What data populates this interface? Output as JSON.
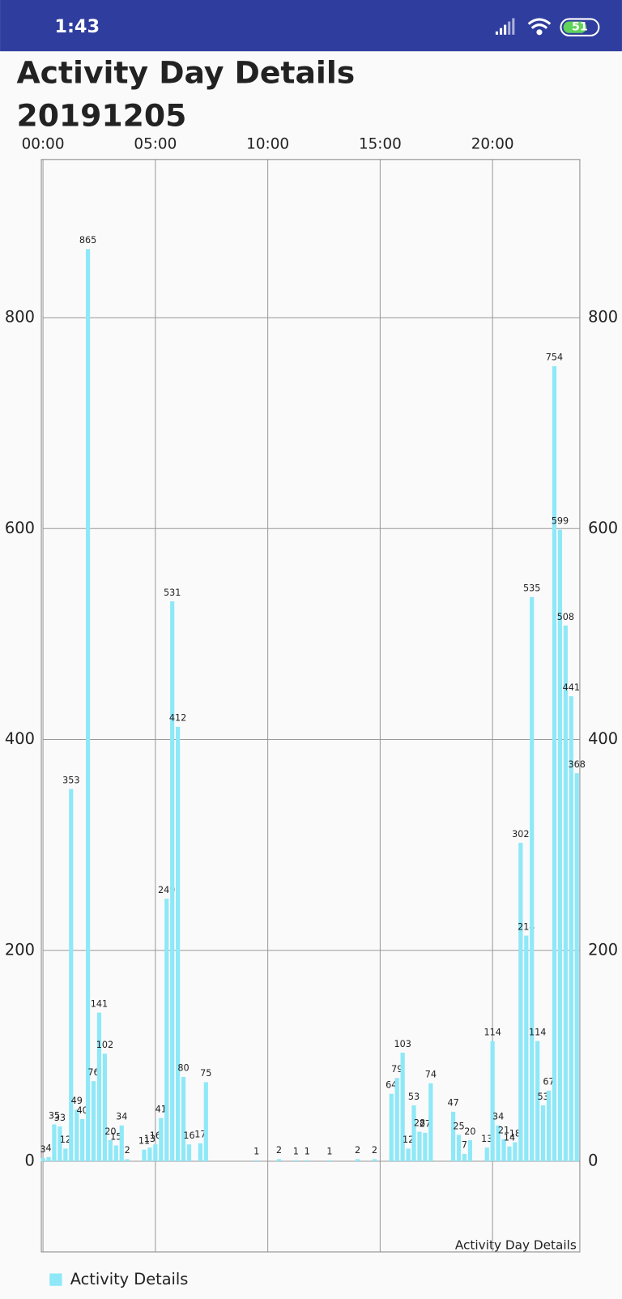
{
  "status_bar": {
    "time": "1:43",
    "battery": "51"
  },
  "header": {
    "title": "Activity Day Details",
    "date": "20191205"
  },
  "chart_data": {
    "type": "bar",
    "description": "Activity Day Details",
    "x": [
      0,
      15,
      30,
      45,
      60,
      75,
      90,
      105,
      120,
      135,
      150,
      165,
      180,
      195,
      210,
      225,
      270,
      285,
      300,
      315,
      330,
      345,
      360,
      375,
      390,
      420,
      435,
      570,
      630,
      675,
      705,
      765,
      840,
      885,
      930,
      945,
      960,
      975,
      990,
      1005,
      1020,
      1035,
      1095,
      1110,
      1125,
      1140,
      1185,
      1200,
      1215,
      1230,
      1245,
      1260,
      1275,
      1290,
      1305,
      1320,
      1335,
      1350,
      1365,
      1380,
      1395,
      1410,
      1425
    ],
    "series": [
      {
        "name": "Activity Details",
        "color": "#8ee8f7",
        "values": [
          3,
          4,
          35,
          33,
          12,
          353,
          49,
          40,
          865,
          76,
          141,
          102,
          20,
          15,
          34,
          2,
          11,
          13,
          16,
          41,
          249,
          531,
          412,
          80,
          16,
          17,
          75,
          1,
          2,
          1,
          1,
          1,
          2,
          2,
          64,
          79,
          103,
          12,
          53,
          28,
          27,
          74,
          47,
          25,
          7,
          20,
          13,
          114,
          34,
          21,
          14,
          18,
          302,
          214,
          535,
          114,
          53,
          67,
          754,
          599,
          508,
          441,
          368
        ]
      }
    ],
    "xlim": [
      0,
      1433
    ],
    "xticks": [
      {
        "value": 0,
        "label": "00:00"
      },
      {
        "value": 300,
        "label": "05:00"
      },
      {
        "value": 600,
        "label": "10:00"
      },
      {
        "value": 900,
        "label": "15:00"
      },
      {
        "value": 1200,
        "label": "20:00"
      }
    ],
    "ylim": [
      -86,
      950
    ],
    "yticks": [
      0,
      200,
      400,
      600,
      800
    ],
    "grid": true
  }
}
